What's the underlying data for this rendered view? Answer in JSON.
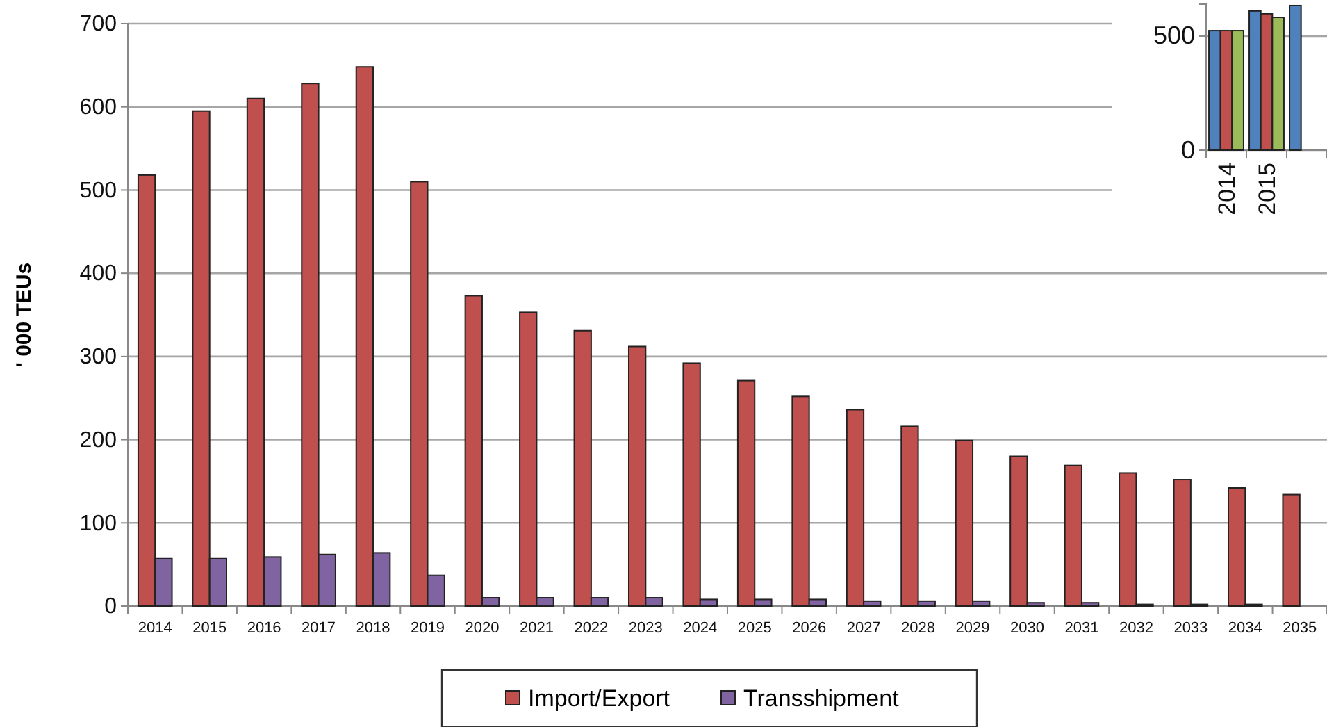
{
  "chart_data": [
    {
      "type": "bar",
      "ylabel": "' 000 TEUs",
      "categories": [
        "2014",
        "2015",
        "2016",
        "2017",
        "2018",
        "2019",
        "2020",
        "2021",
        "2022",
        "2023",
        "2024",
        "2025",
        "2026",
        "2027",
        "2028",
        "2029",
        "2030",
        "2031",
        "2032",
        "2033",
        "2034",
        "2035"
      ],
      "series": [
        {
          "name": "Import/Export",
          "color": "#c0504d",
          "values": [
            518,
            595,
            610,
            628,
            648,
            510,
            373,
            353,
            331,
            312,
            292,
            271,
            252,
            236,
            216,
            199,
            180,
            169,
            160,
            152,
            142,
            134
          ]
        },
        {
          "name": "Transshipment",
          "color": "#8064a2",
          "values": [
            57,
            57,
            59,
            62,
            64,
            37,
            10,
            10,
            10,
            10,
            8,
            8,
            8,
            6,
            6,
            6,
            4,
            4,
            2,
            2,
            2,
            null
          ]
        }
      ],
      "ylim": [
        0,
        700
      ],
      "yticks": [
        0,
        100,
        200,
        300,
        400,
        500,
        600,
        700
      ],
      "grid": "y",
      "legend": "bottom"
    },
    {
      "type": "bar",
      "categories": [
        "2014",
        "2015",
        null
      ],
      "series": [
        {
          "color": "#4f81bd",
          "values": [
            524,
            610,
            634
          ]
        },
        {
          "color": "#c0504d",
          "values": [
            524,
            598,
            null
          ]
        },
        {
          "color": "#9bbb59",
          "values": [
            524,
            582,
            null
          ]
        }
      ],
      "ylim": [
        0,
        640
      ],
      "yticks": [
        0,
        500
      ],
      "grid": "y"
    }
  ]
}
